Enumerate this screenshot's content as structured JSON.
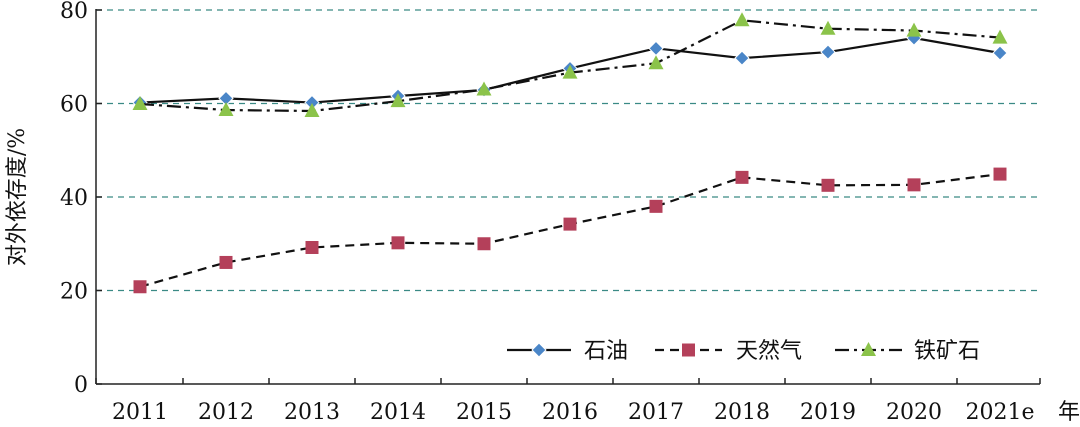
{
  "chart_data": {
    "type": "line",
    "title": "",
    "xlabel": "年",
    "ylabel": "对外依存度/%",
    "ylim": [
      0,
      80
    ],
    "yticks": [
      0,
      20,
      40,
      60,
      80
    ],
    "grid": "horizontal-dashed",
    "legend_position": "bottom-right",
    "categories": [
      "2011",
      "2012",
      "2013",
      "2014",
      "2015",
      "2016",
      "2017",
      "2018",
      "2019",
      "2020",
      "2021e"
    ],
    "series": [
      {
        "name": "石油",
        "values": [
          60.2,
          61.1,
          60.2,
          61.6,
          62.9,
          67.5,
          71.8,
          69.7,
          71.0,
          74.0,
          70.8
        ],
        "color": "#4a86c8",
        "marker": "diamond",
        "line_style": "solid"
      },
      {
        "name": "天然气",
        "values": [
          20.8,
          26.0,
          29.2,
          30.2,
          30.0,
          34.2,
          38.0,
          44.2,
          42.5,
          42.6,
          44.9
        ],
        "color": "#b4405a",
        "marker": "square",
        "line_style": "dashed"
      },
      {
        "name": "铁矿石",
        "values": [
          59.9,
          58.6,
          58.4,
          60.5,
          63.0,
          66.6,
          68.6,
          77.8,
          76.0,
          75.6,
          74.1
        ],
        "color": "#8bc34a",
        "marker": "triangle",
        "line_style": "dashdot"
      }
    ]
  }
}
